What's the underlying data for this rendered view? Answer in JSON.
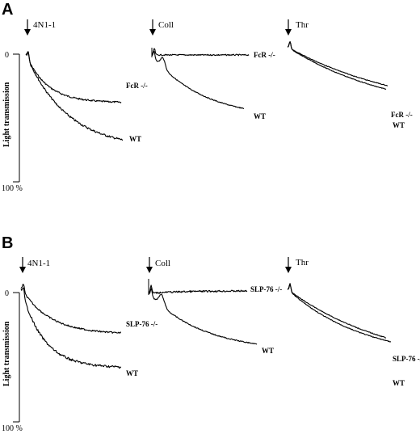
{
  "figure": {
    "panels": [
      {
        "letter": "A",
        "y_label": "Light transmission",
        "y_top_tick": "0",
        "y_bottom_tick": "100 %",
        "subplots": [
          {
            "agonist": "4N1-1",
            "traces": [
              {
                "label": "FcR -/-",
                "final": 0.38,
                "tau": 0.22,
                "bump": 0.0,
                "noise": 0.006
              },
              {
                "label": "WT",
                "final": 0.74,
                "tau": 0.42,
                "bump": 0.0,
                "noise": 0.008
              }
            ]
          },
          {
            "agonist": "Coll",
            "traces": [
              {
                "label": "FcR -/-",
                "final": 0.0,
                "tau": 0.3,
                "bump": 0.0,
                "noise": 0.006
              },
              {
                "label": "WT",
                "final": 0.6,
                "tau": 0.55,
                "bump": 1.0,
                "noise": 0.004
              }
            ]
          },
          {
            "agonist": "Thr",
            "traces": [
              {
                "label": "FcR -/-",
                "final": 0.62,
                "tau": 1.2,
                "bump": 0.0,
                "noise": 0.003
              },
              {
                "label": "WT",
                "final": 0.64,
                "tau": 1.1,
                "bump": 0.0,
                "noise": 0.003
              }
            ]
          }
        ]
      },
      {
        "letter": "B",
        "y_label": "Light transmission",
        "y_top_tick": "0",
        "y_bottom_tick": "100 %",
        "subplots": [
          {
            "agonist": "4N1-1",
            "traces": [
              {
                "label": "SLP-76 -/-",
                "final": 0.36,
                "tau": 0.28,
                "bump": 0.0,
                "noise": 0.006
              },
              {
                "label": "WT",
                "final": 0.62,
                "tau": 0.22,
                "bump": 0.0,
                "noise": 0.009
              }
            ]
          },
          {
            "agonist": "Coll",
            "traces": [
              {
                "label": "SLP-76 -/-",
                "final": -0.02,
                "tau": 0.3,
                "bump": 0.0,
                "noise": 0.007
              },
              {
                "label": "WT",
                "final": 0.48,
                "tau": 0.5,
                "bump": 1.0,
                "noise": 0.004
              }
            ]
          },
          {
            "agonist": "Thr",
            "traces": [
              {
                "label": "SLP-76 -/-",
                "final": 0.58,
                "tau": 0.75,
                "bump": 0.0,
                "noise": 0.003
              },
              {
                "label": "WT",
                "final": 0.66,
                "tau": 1.1,
                "bump": 0.0,
                "noise": 0.003
              }
            ]
          }
        ]
      }
    ]
  }
}
